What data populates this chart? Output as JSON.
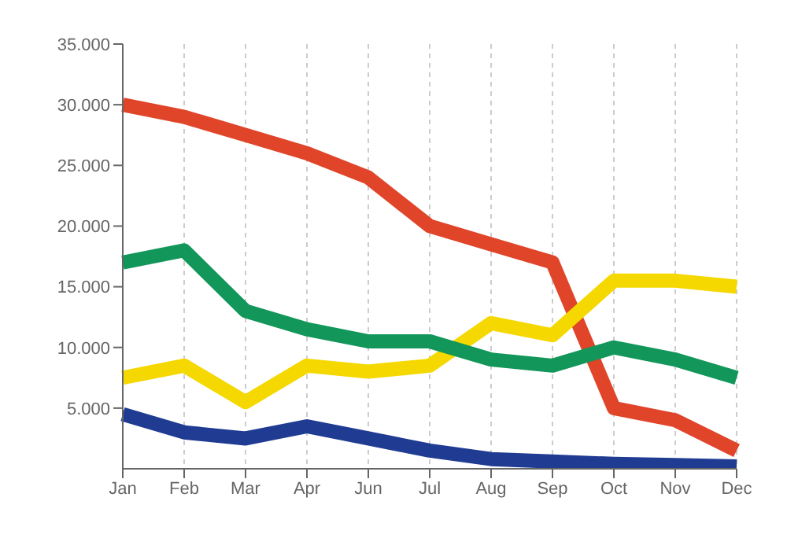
{
  "chart_data": {
    "type": "line",
    "categories": [
      "Jan",
      "Feb",
      "Mar",
      "Apr",
      "Jun",
      "Jul",
      "Aug",
      "Sep",
      "Oct",
      "Nov",
      "Dec"
    ],
    "series": [
      {
        "color": "#e0452a",
        "values": [
          30000,
          29000,
          27500,
          26000,
          24000,
          20000,
          18500,
          17000,
          5000,
          4000,
          1500
        ]
      },
      {
        "color": "#f5d800",
        "values": [
          7500,
          8500,
          5500,
          8500,
          8000,
          8500,
          12000,
          11000,
          15500,
          15500,
          15000
        ]
      },
      {
        "color": "#12965a",
        "values": [
          17000,
          18000,
          13000,
          11500,
          10500,
          10500,
          9000,
          8500,
          10000,
          9000,
          7500
        ]
      },
      {
        "color": "#203c92",
        "values": [
          4500,
          3000,
          2500,
          3500,
          2500,
          1500,
          800,
          600,
          400,
          300,
          200
        ]
      }
    ],
    "ylim": [
      0,
      35000
    ],
    "yticks": [
      {
        "value": 5000,
        "label": "5.000"
      },
      {
        "value": 10000,
        "label": "10.000"
      },
      {
        "value": 15000,
        "label": "15.000"
      },
      {
        "value": 20000,
        "label": "20.000"
      },
      {
        "value": 25000,
        "label": "25.000"
      },
      {
        "value": 30000,
        "label": "30.000"
      },
      {
        "value": 35000,
        "label": "35.000"
      }
    ],
    "grid": "x",
    "marker": "none",
    "line_style": "solid"
  }
}
